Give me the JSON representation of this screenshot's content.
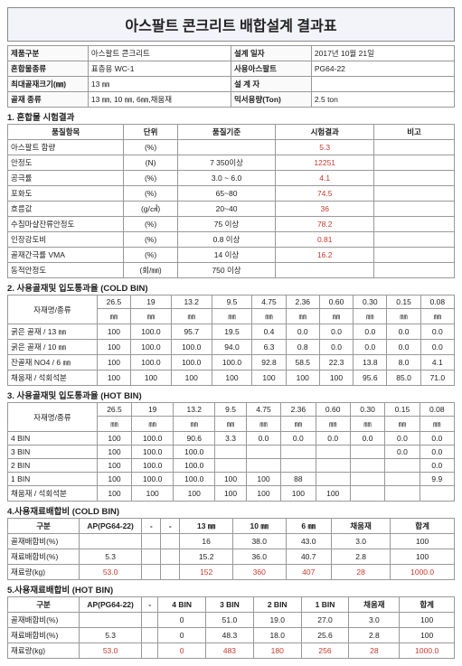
{
  "title": "아스팔트 콘크리트 배합설계 결과표",
  "meta": {
    "r1c1l": "제품구분",
    "r1c1v": "아스팔트 콘크리트",
    "r1c2l": "설계 일자",
    "r1c2v": "2017년 10월 21일",
    "r2c1l": "혼합물종류",
    "r2c1v": "표층용 WC-1",
    "r2c2l": "사용아스팔트",
    "r2c2v": "PG64-22",
    "r3c1l": "최대골재크기(㎜)",
    "r3c1v": "13 ㎜",
    "r3c2l": "설 계 자",
    "r3c2v": "",
    "r4c1l": "골재 종류",
    "r4c1v": "13 ㎜, 10 ㎜, 6㎜,채움재",
    "r4c2l": "믹서용량(Ton)",
    "r4c2v": "2.5 ton"
  },
  "s1": {
    "title": "1. 혼합물 시험결과",
    "headers": {
      "c1": "품질항목",
      "c2": "단위",
      "c3": "품질기준",
      "c4": "시험결과",
      "c5": "비고"
    },
    "rows": [
      {
        "i": "아스팔트 함량",
        "u": "(%)",
        "s": "",
        "r": "5.3",
        "n": ""
      },
      {
        "i": "안정도",
        "u": "(N)",
        "s": "7 350이상",
        "r": "12251",
        "n": ""
      },
      {
        "i": "공극률",
        "u": "(%)",
        "s": "3.0 ~ 6.0",
        "r": "4.1",
        "n": ""
      },
      {
        "i": "포화도",
        "u": "(%)",
        "s": "65~80",
        "r": "74.5",
        "n": ""
      },
      {
        "i": "흐름값",
        "u": "(g/㎤)",
        "s": "20~40",
        "r": "36",
        "n": ""
      },
      {
        "i": "수침마샬잔류안정도",
        "u": "(%)",
        "s": "75 이상",
        "r": "78.2",
        "n": ""
      },
      {
        "i": "인장강도비",
        "u": "(%)",
        "s": "0.8 이상",
        "r": "0.81",
        "n": ""
      },
      {
        "i": "골재간극률 VMA",
        "u": "(%)",
        "s": "14 이상",
        "r": "16.2",
        "n": ""
      },
      {
        "i": "동적안정도",
        "u": "(회/㎜)",
        "s": "750 이상",
        "r": "",
        "n": ""
      }
    ]
  },
  "s2": {
    "title": "2. 사용골재및 입도통과율 (COLD BIN)",
    "h0": "자재명/종류",
    "sizes": [
      "26.5",
      "19",
      "13.2",
      "9.5",
      "4.75",
      "2.36",
      "0.60",
      "0.30",
      "0.15",
      "0.08"
    ],
    "unit": "㎜",
    "rows": [
      {
        "n": "굵은 골재 / 13 ㎜",
        "v": [
          "100",
          "100.0",
          "95.7",
          "19.5",
          "0.4",
          "0.0",
          "0.0",
          "0.0",
          "0.0",
          "0.0"
        ]
      },
      {
        "n": "굵은 골재 / 10 ㎜",
        "v": [
          "100",
          "100.0",
          "100.0",
          "94.0",
          "6.3",
          "0.8",
          "0.0",
          "0.0",
          "0.0",
          "0.0"
        ]
      },
      {
        "n": "잔골재 NO4 / 6 ㎜",
        "v": [
          "100",
          "100.0",
          "100.0",
          "100.0",
          "92.8",
          "58.5",
          "22.3",
          "13.8",
          "8.0",
          "4.1"
        ]
      },
      {
        "n": "채움재 / 석회석분",
        "v": [
          "100",
          "100",
          "100",
          "100",
          "100",
          "100",
          "100",
          "95.6",
          "85.0",
          "71.0"
        ]
      }
    ]
  },
  "s3": {
    "title": "3. 사용골재및 입도통과율 (HOT BIN)",
    "h0": "자재명/종류",
    "sizes": [
      "26.5",
      "19",
      "13.2",
      "9.5",
      "4.75",
      "2.36",
      "0.60",
      "0.30",
      "0.15",
      "0.08"
    ],
    "unit": "㎜",
    "rows": [
      {
        "n": "4 BIN",
        "v": [
          "100",
          "100.0",
          "90.6",
          "3.3",
          "0.0",
          "0.0",
          "0.0",
          "0.0",
          "0.0",
          "0.0"
        ]
      },
      {
        "n": "3 BIN",
        "v": [
          "100",
          "100.0",
          "100.0",
          "",
          "",
          "",
          "",
          "",
          "0.0",
          "0.0"
        ]
      },
      {
        "n": "2 BIN",
        "v": [
          "100",
          "100.0",
          "100.0",
          "",
          "",
          "",
          "",
          "",
          "",
          "0.0"
        ]
      },
      {
        "n": "1 BIN",
        "v": [
          "100",
          "100.0",
          "100.0",
          "100",
          "100",
          "88",
          "",
          "",
          "",
          "9.9"
        ]
      },
      {
        "n": "채움재 / 석회석분",
        "v": [
          "100",
          "100",
          "100",
          "100",
          "100",
          "100",
          "100",
          "",
          "",
          ""
        ]
      }
    ]
  },
  "s4": {
    "title": "4.사용재료배합비 (COLD BIN)",
    "cols": [
      "구분",
      "AP(PG64-22)",
      "-",
      "-",
      "13 ㎜",
      "10 ㎜",
      "6 ㎜",
      "채움재",
      "합계"
    ],
    "rows": [
      {
        "n": "골재배합비(%)",
        "v": [
          "",
          "",
          "",
          "16",
          "38.0",
          "43.0",
          "3.0",
          "100"
        ]
      },
      {
        "n": "재료배합비(%)",
        "v": [
          "5.3",
          "",
          "",
          "15.2",
          "36.0",
          "40.7",
          "2.8",
          "100"
        ]
      },
      {
        "n": "재료량(kg)",
        "v": [
          "53.0",
          "",
          "",
          "152",
          "360",
          "407",
          "28",
          "1000.0"
        ],
        "red": true
      }
    ]
  },
  "s5": {
    "title": "5.사용재료배합비 (HOT BIN)",
    "cols": [
      "구분",
      "AP(PG64-22)",
      "-",
      "4 BIN",
      "3 BIN",
      "2 BIN",
      "1 BIN",
      "채움재",
      "합계"
    ],
    "rows": [
      {
        "n": "골재배합비(%)",
        "v": [
          "",
          "",
          "0",
          "51.0",
          "19.0",
          "27.0",
          "3.0",
          "100"
        ]
      },
      {
        "n": "재료배합비(%)",
        "v": [
          "5.3",
          "",
          "0",
          "48.3",
          "18.0",
          "25.6",
          "2.8",
          "100"
        ]
      },
      {
        "n": "재료량(kg)",
        "v": [
          "53.0",
          "",
          "0",
          "483",
          "180",
          "256",
          "28",
          "1000.0"
        ],
        "red": true
      }
    ]
  }
}
